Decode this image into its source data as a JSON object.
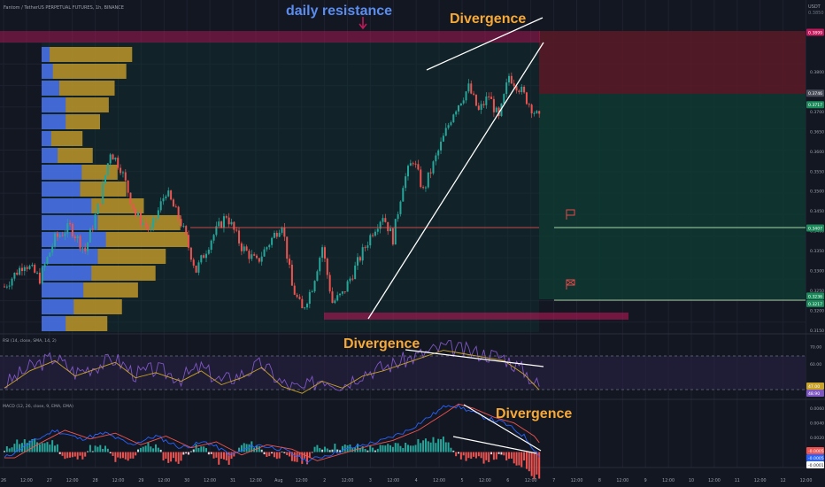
{
  "header": {
    "symbol_title": "Fantom / TetherUS PERPETUAL FUTURES, 1h, BINANCE",
    "currency": "USDT",
    "top_edge_value": "0.3850"
  },
  "colors": {
    "bg": "#131722",
    "up": "#26a69a",
    "down": "#ef5350",
    "resistance": "#c2185b",
    "profile_blue": "#2962ff",
    "profile_gold": "#d4a52a",
    "annotation_orange": "#f7a935",
    "annotation_blue": "#5b8def",
    "rsi_line": "#7e57c2",
    "rsi_ma": "#c9a227",
    "macd_line": "#2962ff",
    "signal_line": "#ef5350"
  },
  "annotations": {
    "daily_resistance": "daily resistance",
    "divergence_price": "Divergence",
    "divergence_rsi": "Divergence",
    "divergence_macd": "Divergence"
  },
  "price_scale": {
    "ticks": [
      "0.3800",
      "0.3750",
      "0.3700",
      "0.3650",
      "0.3600",
      "0.3550",
      "0.3500",
      "0.3450",
      "0.3400",
      "0.3350",
      "0.3300",
      "0.3250",
      "0.3200",
      "0.3150"
    ],
    "tags": [
      {
        "text": "0.3899",
        "kind": "red"
      },
      {
        "text": "0.3746",
        "kind": "gray"
      },
      {
        "text": "0.3717",
        "kind": "green"
      },
      {
        "text": "0.3407",
        "kind": "green"
      },
      {
        "text": "0.3236",
        "kind": "green"
      },
      {
        "text": "0.3217",
        "kind": "green"
      }
    ]
  },
  "rsi": {
    "label": "RSI (14, close, SMA, 14, 2)",
    "ticks": [
      "70.00",
      "60.00"
    ],
    "tags": [
      "47.00",
      "48.90"
    ]
  },
  "macd": {
    "label": "MACD (12, 26, close, 9, EMA, EMA)",
    "ticks": [
      "0.0060",
      "0.0040",
      "0.0020"
    ],
    "tags": [
      "-0.0005",
      "-0.0005",
      "-0.0001"
    ]
  },
  "time_axis": {
    "labels": [
      "26",
      "12:00",
      "27",
      "12:00",
      "28",
      "12:00",
      "29",
      "12:00",
      "30",
      "12:00",
      "31",
      "12:00",
      "Aug",
      "12:00",
      "2",
      "12:00",
      "3",
      "12:00",
      "4",
      "12:00",
      "5",
      "12:00",
      "6",
      "12:00",
      "7",
      "12:00",
      "8",
      "12:00",
      "9",
      "12:00",
      "10",
      "12:00",
      "11",
      "12:00",
      "12",
      "12:00"
    ]
  },
  "chart_data": {
    "type": "candlestick",
    "title": "Fantom / TetherUS PERPETUAL FUTURES, 1h, BINANCE",
    "ylim": [
      0.315,
      0.39
    ],
    "resistance_zone": [
      0.3885,
      0.39
    ],
    "support_zone": [
      0.3167,
      0.3178
    ],
    "horizontal_levels": [
      0.3407,
      0.3236
    ],
    "short_position": {
      "entry": 0.3717,
      "stop": 0.3899,
      "target": 0.3236
    },
    "volume_profile_poc": 0.3407,
    "close_path": [
      [
        0,
        0.326
      ],
      [
        8,
        0.332
      ],
      [
        14,
        0.328
      ],
      [
        20,
        0.338
      ],
      [
        26,
        0.341
      ],
      [
        32,
        0.335
      ],
      [
        38,
        0.348
      ],
      [
        42,
        0.36
      ],
      [
        46,
        0.356
      ],
      [
        52,
        0.344
      ],
      [
        58,
        0.34
      ],
      [
        64,
        0.35
      ],
      [
        70,
        0.342
      ],
      [
        76,
        0.33
      ],
      [
        82,
        0.338
      ],
      [
        88,
        0.344
      ],
      [
        94,
        0.336
      ],
      [
        100,
        0.332
      ],
      [
        106,
        0.338
      ],
      [
        110,
        0.342
      ],
      [
        114,
        0.326
      ],
      [
        118,
        0.32
      ],
      [
        122,
        0.326
      ],
      [
        126,
        0.336
      ],
      [
        130,
        0.322
      ],
      [
        134,
        0.324
      ],
      [
        140,
        0.332
      ],
      [
        146,
        0.34
      ],
      [
        150,
        0.344
      ],
      [
        154,
        0.338
      ],
      [
        158,
        0.352
      ],
      [
        162,
        0.358
      ],
      [
        166,
        0.35
      ],
      [
        172,
        0.36
      ],
      [
        178,
        0.37
      ],
      [
        184,
        0.376
      ],
      [
        188,
        0.37
      ],
      [
        192,
        0.374
      ],
      [
        196,
        0.368
      ],
      [
        200,
        0.379
      ],
      [
        204,
        0.376
      ],
      [
        208,
        0.372
      ],
      [
        212,
        0.368
      ]
    ],
    "rsi_series": [
      [
        0,
        48
      ],
      [
        10,
        58
      ],
      [
        20,
        64
      ],
      [
        28,
        55
      ],
      [
        36,
        59
      ],
      [
        44,
        63
      ],
      [
        52,
        54
      ],
      [
        60,
        57
      ],
      [
        70,
        52
      ],
      [
        78,
        58
      ],
      [
        86,
        50
      ],
      [
        94,
        54
      ],
      [
        102,
        60
      ],
      [
        110,
        49
      ],
      [
        118,
        45
      ],
      [
        126,
        52
      ],
      [
        134,
        48
      ],
      [
        142,
        55
      ],
      [
        150,
        58
      ],
      [
        158,
        62
      ],
      [
        166,
        66
      ],
      [
        174,
        70
      ],
      [
        182,
        68
      ],
      [
        190,
        66
      ],
      [
        198,
        64
      ],
      [
        206,
        56
      ],
      [
        212,
        47
      ]
    ],
    "rsi_ylim": [
      40,
      75
    ],
    "macd_series": [
      [
        0,
        -0.0008
      ],
      [
        10,
        0.0012
      ],
      [
        20,
        0.003
      ],
      [
        30,
        0.0018
      ],
      [
        40,
        0.0026
      ],
      [
        50,
        0.001
      ],
      [
        60,
        0.0022
      ],
      [
        70,
        0.0006
      ],
      [
        80,
        0.0014
      ],
      [
        90,
        -0.0004
      ],
      [
        100,
        0.001
      ],
      [
        110,
        0.0004
      ],
      [
        120,
        -0.0012
      ],
      [
        130,
        -0.0002
      ],
      [
        140,
        0.0008
      ],
      [
        150,
        0.0016
      ],
      [
        160,
        0.003
      ],
      [
        170,
        0.0052
      ],
      [
        176,
        0.0066
      ],
      [
        182,
        0.006
      ],
      [
        190,
        0.0048
      ],
      [
        198,
        0.004
      ],
      [
        206,
        0.0022
      ],
      [
        212,
        -0.0005
      ]
    ],
    "macd_ylim": [
      -0.002,
      0.007
    ]
  }
}
